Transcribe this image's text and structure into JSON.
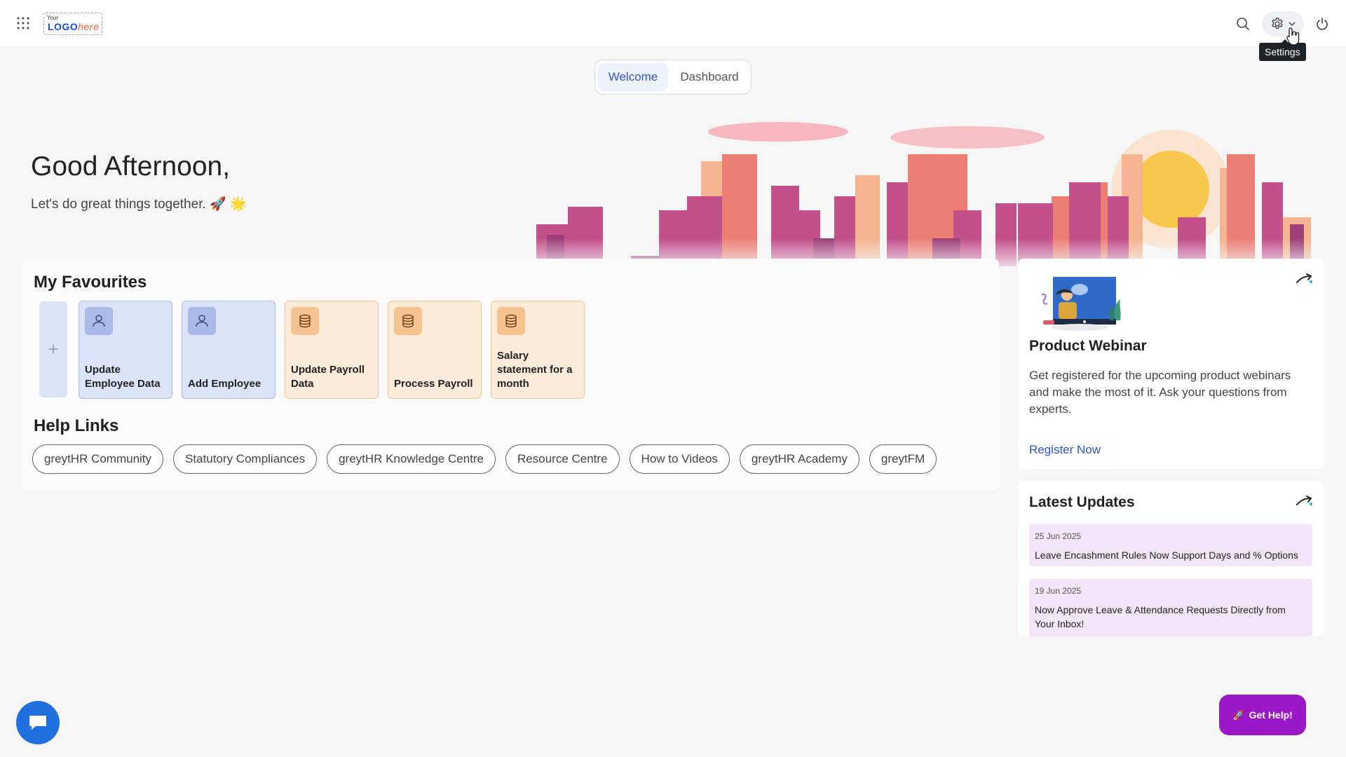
{
  "topbar": {
    "logo_small": "Your",
    "logo_main": "LOGO",
    "logo_suffix": "here",
    "settings_tooltip": "Settings"
  },
  "tabs": [
    {
      "label": "Welcome",
      "active": true
    },
    {
      "label": "Dashboard",
      "active": false
    }
  ],
  "greeting": {
    "title": "Good Afternoon,",
    "subtitle": "Let's do great things together. 🚀 🌟"
  },
  "favourites": {
    "title": "My Favourites",
    "items": [
      {
        "label": "Update Employee Data",
        "icon": "person-icon",
        "color": "blue"
      },
      {
        "label": "Add Employee",
        "icon": "person-icon",
        "color": "blue"
      },
      {
        "label": "Update Payroll Data",
        "icon": "database-icon",
        "color": "orange"
      },
      {
        "label": "Process Payroll",
        "icon": "database-icon",
        "color": "orange"
      },
      {
        "label": "Salary statement for a month",
        "icon": "database-icon",
        "color": "orange"
      }
    ]
  },
  "help_links": {
    "title": "Help Links",
    "items": [
      "greytHR Community",
      "Statutory Compliances",
      "greytHR Knowledge Centre",
      "Resource Centre",
      "How to Videos",
      "greytHR Academy",
      "greytFM"
    ]
  },
  "webinar": {
    "title": "Product Webinar",
    "description": "Get registered for the upcoming product webinars and make the most of it. Ask your questions from experts.",
    "link": "Register Now"
  },
  "updates": {
    "title": "Latest Updates",
    "items": [
      {
        "date": "25 Jun 2025",
        "text": "Leave Encashment Rules Now Support Days and % Options"
      },
      {
        "date": "19 Jun 2025",
        "text": "Now Approve Leave & Attendance Requests Directly from Your Inbox!"
      }
    ]
  },
  "floating": {
    "help_button": "Get Help!"
  },
  "colors": {
    "accent": "#3656c8",
    "help_button": "#9a18c8",
    "chat_button": "#1f6fe0"
  }
}
